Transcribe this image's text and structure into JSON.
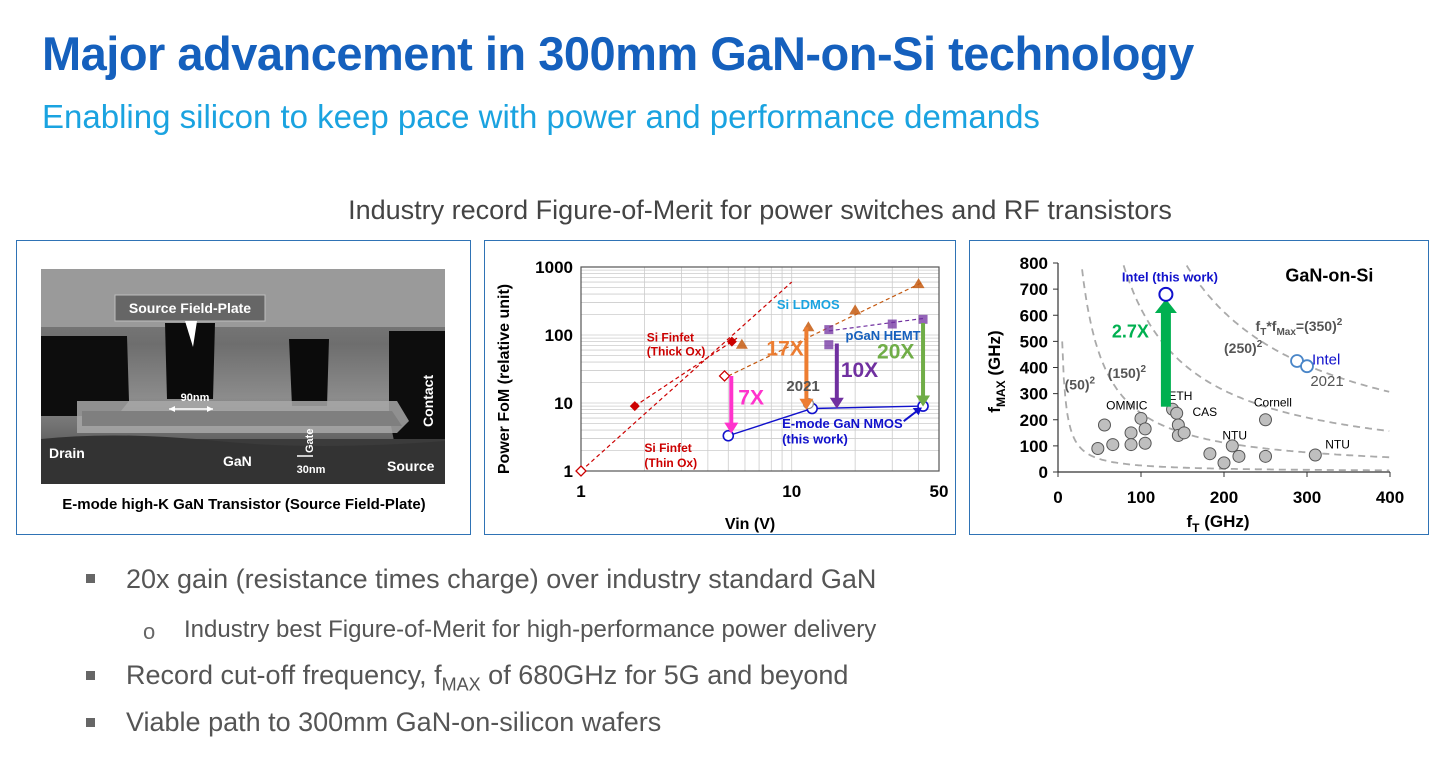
{
  "slide": {
    "title": "Major advancement in 300mm GaN-on-Si technology",
    "subtitle": "Enabling silicon to keep pace with power and performance demands",
    "record_heading": "Industry record Figure-of-Merit for power switches and RF transistors"
  },
  "tem": {
    "labels": {
      "source_field_plate": "Source Field-Plate",
      "gate_width": "90nm",
      "gate": "Gate",
      "gate_length": "30nm",
      "contact": "Contact",
      "drain": "Drain",
      "gan": "GaN",
      "source": "Source"
    },
    "caption": "E-mode high-K GaN Transistor (Source Field-Plate)"
  },
  "bullets": {
    "b1": "20x gain (resistance times charge) over industry standard GaN",
    "b1_sub": "Industry best Figure-of-Merit for high-performance power delivery",
    "b2_pre": "Record cut-off frequency, f",
    "b2_sub": "MAX",
    "b2_post": " of 680GHz for 5G and beyond",
    "b3": "Viable path to 300mm GaN-on-silicon wafers"
  },
  "chart_data": [
    {
      "type": "scatter",
      "xlabel": "Vin (V)",
      "ylabel": "Power FoM (relative unit)",
      "x_scale": "log",
      "y_scale": "log",
      "xlim": [
        1,
        50
      ],
      "ylim": [
        1,
        1000
      ],
      "x_ticks": [
        1,
        10,
        50
      ],
      "y_ticks": [
        1,
        10,
        100,
        1000
      ],
      "x_tick_labels": [
        "1",
        "10",
        "50"
      ],
      "y_tick_labels": [
        "1",
        "10",
        "100",
        "1000"
      ],
      "grid": true,
      "colors": {
        "si_thick": "#cc0000",
        "si_thin": "#cc0000",
        "ldmos": "#c55a11",
        "pgan": "#7030a0",
        "egan": "#1111cc",
        "arrow7": "#ff33cc",
        "arrow17": "#ed7d31",
        "arrow10": "#7030a0",
        "arrow20": "#70ad47"
      },
      "series": [
        {
          "name": "Si Finfet (Thick Ox)",
          "label_line2": "",
          "points": [
            [
              1.8,
              9
            ],
            [
              5.2,
              80
            ]
          ]
        },
        {
          "name": "Si Finfet (Thin Ox)",
          "points": [
            [
              1.0,
              1.0
            ],
            [
              4.8,
              25
            ]
          ]
        },
        {
          "name": "Si LDMOS",
          "points": [
            [
              5.8,
              72
            ],
            [
              12,
              130
            ],
            [
              20,
              230
            ],
            [
              40,
              560
            ]
          ]
        },
        {
          "name": "pGaN HEMT",
          "points": [
            [
              15,
              72
            ],
            [
              15,
              120
            ],
            [
              30,
              145
            ],
            [
              42,
              170
            ]
          ]
        },
        {
          "name": "E-mode GaN NMOS",
          "name_line2": "(this work)",
          "points": [
            [
              5.0,
              3.3
            ],
            [
              12.5,
              8.3
            ],
            [
              42,
              9
            ]
          ]
        }
      ],
      "annotations": {
        "year": "2021",
        "label_thick_1": "Si Finfet",
        "label_thick_2": "(Thick Ox)",
        "label_thin_1": "Si Finfet",
        "label_thin_2": "(Thin Ox)",
        "label_ldmos": "Si LDMOS",
        "label_pgan": "pGaN HEMT",
        "label_egan_1": "E-mode GaN NMOS",
        "label_egan_2": "(this work)"
      },
      "arrows": [
        {
          "label": "7X",
          "x": 5.0,
          "from": 25,
          "to": 3.8
        },
        {
          "label": "17X",
          "x": 12,
          "from": 130,
          "to": 8.5
        },
        {
          "label": "10X",
          "x": 15,
          "from": 75,
          "to": 8.8
        },
        {
          "label": "20X",
          "x": 42,
          "from": 150,
          "to": 9.5
        }
      ]
    },
    {
      "type": "scatter",
      "title": "GaN-on-Si",
      "xlabel_main": "f",
      "xlabel_sub": "T",
      "xlabel_unit": " (GHz)",
      "ylabel_main": "f",
      "ylabel_sub": "MAX",
      "ylabel_unit": " (GHz)",
      "xlim": [
        0,
        400
      ],
      "ylim": [
        0,
        800
      ],
      "x_ticks": [
        0,
        100,
        200,
        300,
        400
      ],
      "y_ticks": [
        0,
        100,
        200,
        300,
        400,
        500,
        600,
        700,
        800
      ],
      "x_tick_labels": [
        "0",
        "100",
        "200",
        "300",
        "400"
      ],
      "y_tick_labels": [
        "0",
        "100",
        "200",
        "300",
        "400",
        "500",
        "600",
        "700",
        "800"
      ],
      "colors": {
        "others": "#bfbfbf",
        "intel": "#1111cc",
        "intel_2021": "#4a86c8",
        "arrow": "#00b050",
        "curve": "#aaaaaa"
      },
      "iso_curves": [
        {
          "k": 50,
          "label_main": "(50)",
          "label_sup": "2"
        },
        {
          "k": 150,
          "label_main": "(150)",
          "label_sup": "2"
        },
        {
          "k": 250,
          "label_main": "(250)",
          "label_sup": "2"
        },
        {
          "k": 350,
          "label_main": "(350)",
          "label_sup": "2"
        }
      ],
      "iso_label_main": "f",
      "iso_label_sub1": "T",
      "iso_label_mid": "*f",
      "iso_label_sub2": "Max",
      "iso_label_post": "=(350)",
      "iso_label_sup": "2",
      "others": [
        [
          48,
          90
        ],
        [
          56,
          180
        ],
        [
          66,
          105
        ],
        [
          88,
          150
        ],
        [
          88,
          105
        ],
        [
          100,
          205
        ],
        [
          105,
          165
        ],
        [
          105,
          110
        ],
        [
          138,
          240
        ],
        [
          143,
          225
        ],
        [
          145,
          180
        ],
        [
          145,
          140
        ],
        [
          152,
          150
        ],
        [
          183,
          70
        ],
        [
          200,
          35
        ],
        [
          210,
          100
        ],
        [
          218,
          60
        ],
        [
          250,
          200
        ],
        [
          250,
          60
        ],
        [
          310,
          65
        ]
      ],
      "other_labels": {
        "ommic": "OMMIC",
        "eth": "ETH",
        "cas": "CAS",
        "ntu1": "NTU",
        "cornell": "Cornell",
        "ntu2": "NTU"
      },
      "intel_this_work": {
        "label": "Intel (this work)",
        "x": 130,
        "y": 680
      },
      "intel_2021": {
        "label": "Intel",
        "year": "2021",
        "points": [
          [
            288,
            425
          ],
          [
            300,
            405
          ]
        ]
      },
      "arrow": {
        "label": "2.7X",
        "x": 130,
        "from": 250,
        "to": 670
      }
    }
  ]
}
